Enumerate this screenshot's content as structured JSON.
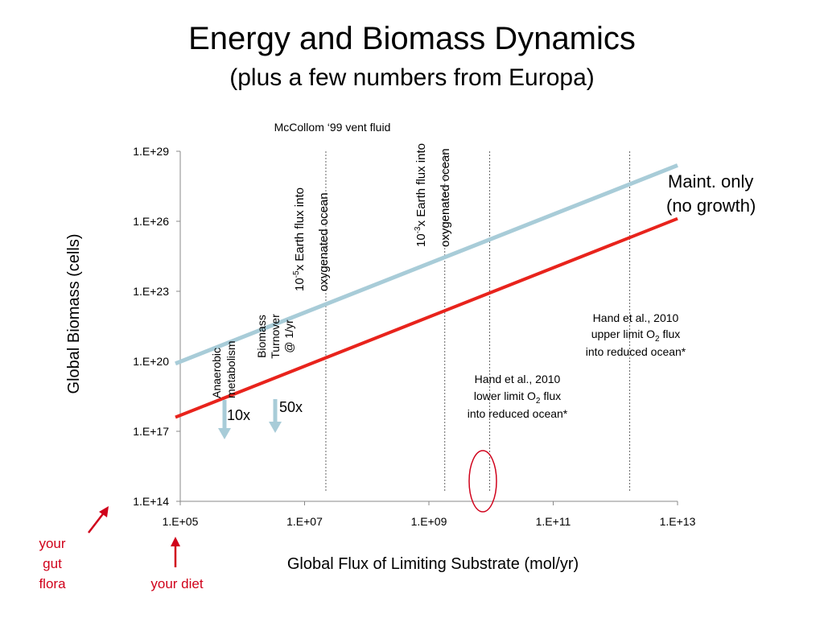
{
  "slide": {
    "title": "Energy and Biomass Dynamics",
    "subtitle": "(plus a few numbers from Europa)"
  },
  "chart_data": {
    "type": "line",
    "xlabel": "Global Flux of Limiting Substrate (mol/yr)",
    "ylabel": "Global Biomass (cells)",
    "x_scale": "log",
    "y_scale": "log",
    "xlim": [
      100000,
      10000000000000
    ],
    "ylim": [
      100000000000000,
      100000000000000000000000000000
    ],
    "x_ticks": [
      100000,
      10000000,
      1000000000,
      100000000000,
      10000000000000
    ],
    "x_tick_labels": [
      "1.E+05",
      "1.E+07",
      "1.E+09",
      "1.E+11",
      "1.E+13"
    ],
    "y_ticks": [
      100000000000000,
      100000000000000000,
      100000000000000000000,
      100000000000000000000000,
      100000000000000000000000000,
      100000000000000000000000000000
    ],
    "y_tick_labels": [
      "1.E+14",
      "1.E+17",
      "1.E+20",
      "1.E+23",
      "1.E+26",
      "1.E+29"
    ],
    "grid": false,
    "series": [
      {
        "name": "",
        "color": "#a8ccd8",
        "points": [
          [
            100000,
            8e+19
          ],
          [
            10000000000000,
            2.5e+28
          ]
        ]
      },
      {
        "name": "",
        "color": "#e8231c",
        "points": [
          [
            100000,
            4e+17
          ],
          [
            10000000000000,
            1.3e+26
          ]
        ]
      }
    ],
    "reference_lines": [
      {
        "id": "mccollom",
        "x": 22000000
      },
      {
        "id": "europa-1e3",
        "x": 1800000000
      },
      {
        "id": "hand-lower",
        "x": 9500000000
      },
      {
        "id": "hand-upper",
        "x": 1700000000000
      }
    ],
    "annotations": {
      "mccollom": "McCollom ‘99 vent fluid",
      "flux_1e5": {
        "line1_pre": "10",
        "line1_sup": "-5",
        "line1_post": "x Earth flux into",
        "line2": "oxygenated  ocean"
      },
      "flux_1e3": {
        "line1_pre": "10",
        "line1_sup": "-3",
        "line1_post": "x Earth flux into",
        "line2": "oxygenated  ocean"
      },
      "maint_line1": "Maint. only",
      "maint_line2": "(no growth)",
      "anaerobic_line1": "Anaerobic",
      "anaerobic_line2": "metabolism",
      "turnover_line1": "Biomass",
      "turnover_line2": "Turnover",
      "turnover_line3": "@ 1/yr",
      "factor_10x": "10x",
      "factor_50x": "50x",
      "hand_upper": {
        "line1": "Hand et al., 2010",
        "line2_pre": "upper limit O",
        "line2_sub": "2",
        "line2_post": " flux",
        "line3": "into reduced ocean*"
      },
      "hand_lower": {
        "line1": "Hand et al., 2010",
        "line2_pre": "lower limit O",
        "line2_sub": "2",
        "line2_post": " flux",
        "line3": "into reduced ocean*"
      },
      "gut_line1": "your",
      "gut_line2": "gut",
      "gut_line3": "flora",
      "diet": "your diet"
    },
    "colors": {
      "maint_line": "#a8ccd8",
      "growth_line": "#e8231c",
      "annotation_red": "#d0021b",
      "arrow_blue": "#a8ccd8"
    }
  }
}
